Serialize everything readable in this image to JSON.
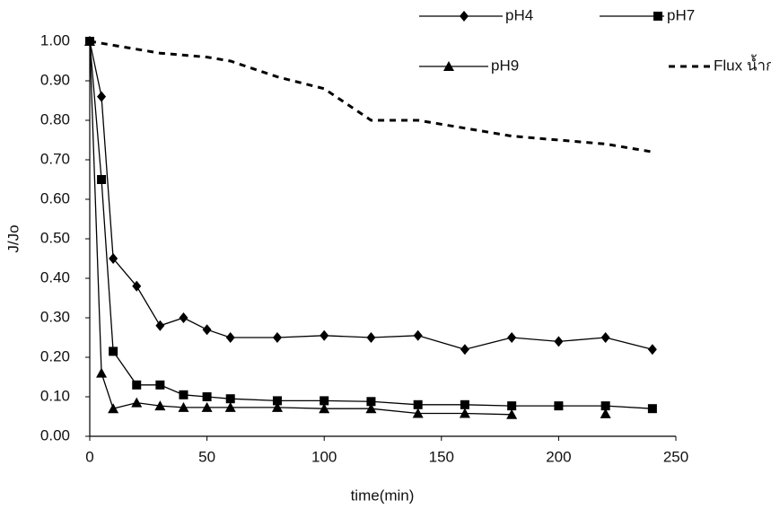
{
  "chart_data": {
    "type": "line",
    "x": [
      0,
      5,
      10,
      20,
      30,
      40,
      50,
      60,
      80,
      100,
      120,
      140,
      160,
      180,
      200,
      220,
      240
    ],
    "series": [
      {
        "name": "pH4",
        "color": "#000000",
        "marker": "diamond",
        "dashed": false,
        "values": [
          1.0,
          0.86,
          0.45,
          0.38,
          0.28,
          0.3,
          0.27,
          0.25,
          0.25,
          0.255,
          0.25,
          0.255,
          0.22,
          0.25,
          0.24,
          0.25,
          0.22
        ]
      },
      {
        "name": "pH7",
        "color": "#000000",
        "marker": "square",
        "dashed": false,
        "values": [
          1.0,
          0.65,
          0.215,
          0.13,
          0.13,
          0.105,
          0.1,
          0.095,
          0.09,
          0.09,
          0.088,
          0.08,
          0.08,
          0.077,
          0.077,
          0.077,
          0.07
        ]
      },
      {
        "name": "pH9",
        "color": "#000000",
        "marker": "triangle",
        "dashed": false,
        "values": [
          1.0,
          0.16,
          0.07,
          0.085,
          0.077,
          0.073,
          0.073,
          0.073,
          0.073,
          0.07,
          0.07,
          0.058,
          0.058,
          0.055,
          null,
          0.057,
          null
        ]
      },
      {
        "name": "Flux น้ำกลั่น",
        "color": "#000000",
        "marker": "none",
        "dashed": true,
        "values": [
          1.0,
          0.995,
          0.99,
          0.98,
          0.97,
          0.965,
          0.96,
          0.95,
          0.91,
          0.88,
          0.8,
          0.8,
          0.78,
          0.76,
          0.75,
          0.74,
          0.72
        ]
      }
    ],
    "xlabel": "time(min)",
    "ylabel": "J/Jo",
    "xlim": [
      0,
      250
    ],
    "xticks": [
      0,
      50,
      100,
      150,
      200,
      250
    ],
    "ylim": [
      0,
      1
    ],
    "yticks": [
      {
        "value": 0,
        "label": "0.00"
      },
      {
        "value": 0.1,
        "label": "0.10"
      },
      {
        "value": 0.2,
        "label": "0.20"
      },
      {
        "value": 0.3,
        "label": "0.30"
      },
      {
        "value": 0.4,
        "label": "0.40"
      },
      {
        "value": 0.5,
        "label": "0.50"
      },
      {
        "value": 0.6,
        "label": "0.60"
      },
      {
        "value": 0.7,
        "label": "0.70"
      },
      {
        "value": 0.8,
        "label": "0.80"
      },
      {
        "value": 0.9,
        "label": "0.90"
      },
      {
        "value": 1,
        "label": "1.00"
      }
    ],
    "grid": false,
    "legend": "top-right"
  }
}
